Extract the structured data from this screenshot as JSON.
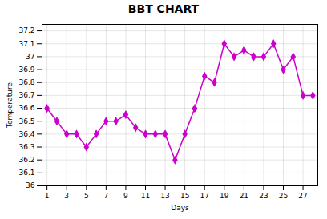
{
  "chart_data": {
    "type": "line",
    "title": "BBT CHART",
    "xlabel": "Days",
    "ylabel": "Temperature",
    "x": [
      1,
      2,
      3,
      4,
      5,
      6,
      7,
      8,
      9,
      10,
      11,
      12,
      13,
      14,
      15,
      16,
      17,
      18,
      19,
      20,
      21,
      22,
      23,
      24,
      25,
      26,
      27,
      28
    ],
    "values": [
      36.6,
      36.5,
      36.4,
      36.4,
      36.3,
      36.4,
      36.5,
      36.5,
      36.55,
      36.45,
      36.4,
      36.4,
      36.4,
      36.2,
      36.4,
      36.6,
      36.85,
      36.8,
      37.1,
      37.0,
      37.05,
      37.0,
      37.0,
      37.1,
      36.9,
      37.0,
      36.7,
      36.7
    ],
    "color": "#CC00CC",
    "marker": "diamond",
    "xlim": [
      0.5,
      28.5
    ],
    "xticks": [
      1,
      3,
      5,
      7,
      9,
      11,
      13,
      15,
      17,
      19,
      21,
      23,
      25,
      27
    ],
    "ylim": [
      36.0,
      37.25
    ],
    "yticks": [
      36,
      36.1,
      36.2,
      36.3,
      36.4,
      36.5,
      36.6,
      36.7,
      36.8,
      36.9,
      37,
      37.1,
      37.2
    ],
    "grid": true
  }
}
